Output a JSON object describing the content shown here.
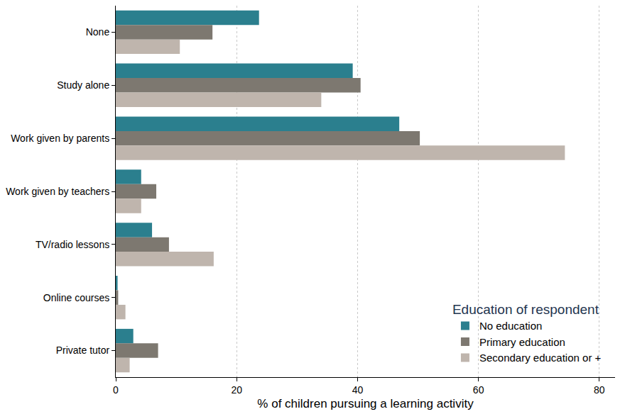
{
  "chart_data": {
    "type": "bar",
    "orientation": "horizontal",
    "x_label": "% of children pursuing a learning activity",
    "categories": [
      "None",
      "Study alone",
      "Work given by parents",
      "Work given by teachers",
      "TV/radio lessons",
      "Online courses",
      "Private tutor"
    ],
    "series": [
      {
        "name": "No education",
        "color": "#2b7f8e",
        "values": [
          23.7,
          39.2,
          46.9,
          4.2,
          6.0,
          0.3,
          2.9
        ]
      },
      {
        "name": "Primary education",
        "color": "#7d7870",
        "values": [
          16.0,
          40.5,
          50.3,
          6.7,
          8.8,
          0.4,
          7.0
        ]
      },
      {
        "name": "Secondary education or +",
        "color": "#bfb5ad",
        "values": [
          10.6,
          34.0,
          74.3,
          4.2,
          16.2,
          1.6,
          2.3
        ]
      }
    ],
    "legend_title": "Education of respondent",
    "legend": "bottom right",
    "xlim": [
      0,
      82.6
    ],
    "xticks": [
      0,
      20,
      40,
      60,
      80
    ],
    "grid": true
  }
}
